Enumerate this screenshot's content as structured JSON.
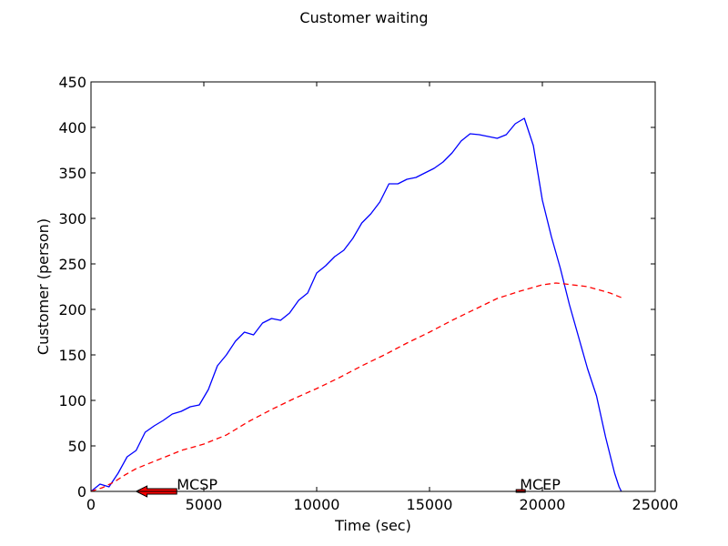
{
  "chart_data": {
    "type": "line",
    "title": "Customer waiting",
    "xlabel": "Time (sec)",
    "ylabel": "Customer (person)",
    "xlim": [
      0,
      25000
    ],
    "ylim": [
      0,
      450
    ],
    "xticks": [
      0,
      5000,
      10000,
      15000,
      20000,
      25000
    ],
    "yticks": [
      0,
      50,
      100,
      150,
      200,
      250,
      300,
      350,
      400,
      450
    ],
    "grid": false,
    "legend": "none",
    "series": [
      {
        "style": "solid",
        "color": "#0000ff",
        "points": [
          [
            0,
            0
          ],
          [
            400,
            8
          ],
          [
            800,
            5
          ],
          [
            1200,
            20
          ],
          [
            1600,
            38
          ],
          [
            2000,
            45
          ],
          [
            2400,
            65
          ],
          [
            2800,
            72
          ],
          [
            3200,
            78
          ],
          [
            3600,
            85
          ],
          [
            4000,
            88
          ],
          [
            4400,
            93
          ],
          [
            4800,
            95
          ],
          [
            5200,
            112
          ],
          [
            5600,
            138
          ],
          [
            6000,
            150
          ],
          [
            6400,
            165
          ],
          [
            6800,
            175
          ],
          [
            7200,
            172
          ],
          [
            7600,
            185
          ],
          [
            8000,
            190
          ],
          [
            8400,
            188
          ],
          [
            8800,
            196
          ],
          [
            9200,
            210
          ],
          [
            9600,
            218
          ],
          [
            10000,
            240
          ],
          [
            10400,
            248
          ],
          [
            10800,
            258
          ],
          [
            11200,
            265
          ],
          [
            11600,
            278
          ],
          [
            12000,
            295
          ],
          [
            12400,
            305
          ],
          [
            12800,
            318
          ],
          [
            13200,
            338
          ],
          [
            13600,
            338
          ],
          [
            14000,
            343
          ],
          [
            14400,
            345
          ],
          [
            14800,
            350
          ],
          [
            15200,
            355
          ],
          [
            15600,
            362
          ],
          [
            16000,
            372
          ],
          [
            16400,
            385
          ],
          [
            16800,
            393
          ],
          [
            17200,
            392
          ],
          [
            17600,
            390
          ],
          [
            18000,
            388
          ],
          [
            18400,
            392
          ],
          [
            18800,
            404
          ],
          [
            19200,
            410
          ],
          [
            19600,
            380
          ],
          [
            20000,
            320
          ],
          [
            20400,
            280
          ],
          [
            20800,
            245
          ],
          [
            21200,
            205
          ],
          [
            21600,
            170
          ],
          [
            22000,
            135
          ],
          [
            22400,
            105
          ],
          [
            22800,
            60
          ],
          [
            23200,
            20
          ],
          [
            23400,
            5
          ],
          [
            23500,
            0
          ]
        ]
      },
      {
        "style": "dashed",
        "color": "#ff0000",
        "points": [
          [
            0,
            0
          ],
          [
            500,
            4
          ],
          [
            1000,
            10
          ],
          [
            1500,
            18
          ],
          [
            2000,
            25
          ],
          [
            3000,
            35
          ],
          [
            4000,
            45
          ],
          [
            5000,
            52
          ],
          [
            6000,
            62
          ],
          [
            7000,
            77
          ],
          [
            8000,
            90
          ],
          [
            9000,
            102
          ],
          [
            10000,
            113
          ],
          [
            11000,
            125
          ],
          [
            12000,
            138
          ],
          [
            13000,
            150
          ],
          [
            14000,
            163
          ],
          [
            15000,
            175
          ],
          [
            16000,
            188
          ],
          [
            17000,
            200
          ],
          [
            18000,
            212
          ],
          [
            19000,
            220
          ],
          [
            20000,
            227
          ],
          [
            20600,
            229
          ],
          [
            21000,
            228
          ],
          [
            22000,
            225
          ],
          [
            23000,
            218
          ],
          [
            23500,
            213
          ]
        ]
      }
    ],
    "annotations": [
      {
        "text": "MCSP",
        "x": 3800,
        "y": 0,
        "arrow_tip": [
          2000,
          0
        ],
        "arrow_color": "#ff0000"
      },
      {
        "text": "MCEP",
        "x": 19000,
        "y": 0,
        "arrow_tip": [
          19000,
          0
        ],
        "arrow_color": "#ff0000"
      }
    ]
  }
}
